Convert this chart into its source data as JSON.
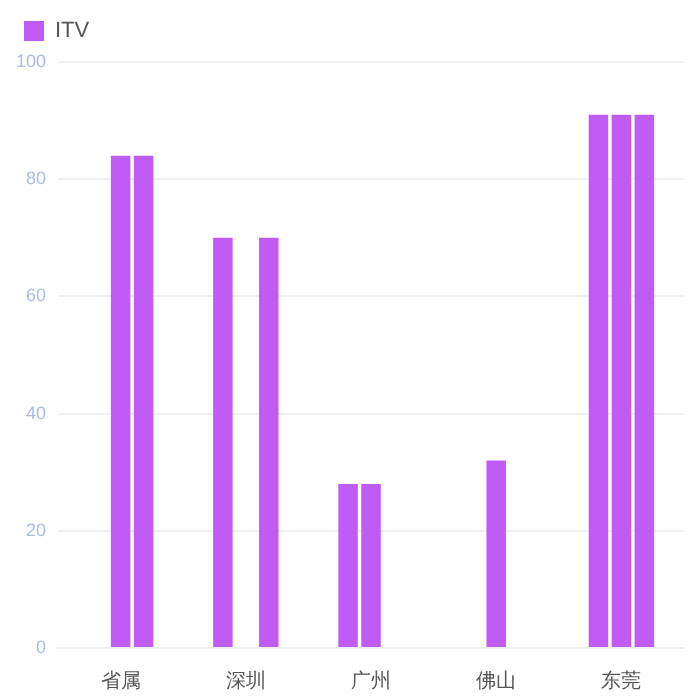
{
  "chart_data": {
    "type": "bar",
    "categories": [
      "省属",
      "深圳",
      "广州",
      "佛山",
      "东莞"
    ],
    "series": [
      {
        "name": "ITV",
        "color": "#c05cf5",
        "values": [
          null,
          70,
          28,
          null,
          91
        ]
      },
      {
        "color": "#c05cf5",
        "values": [
          84,
          null,
          28,
          32,
          91
        ]
      },
      {
        "color": "#c05cf5",
        "values": [
          84,
          70,
          null,
          null,
          91
        ]
      }
    ],
    "ylim": [
      0,
      100
    ],
    "yticks": [
      0,
      20,
      40,
      60,
      80,
      100
    ],
    "grid": "y",
    "legend": "top left"
  }
}
